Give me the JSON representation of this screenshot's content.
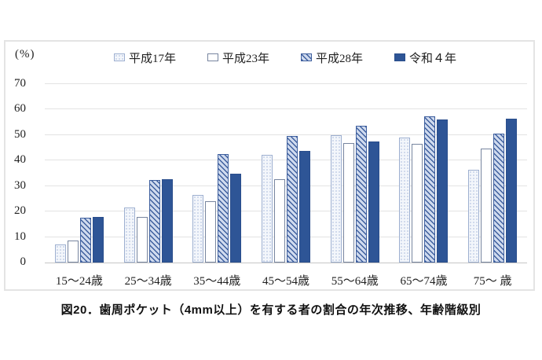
{
  "chart_data": {
    "type": "bar",
    "title": "図20．歯周ポケット（4mm以上）を有する者の割合の年次推移、年齢階級別",
    "unit_label": "(%)",
    "categories": [
      "15～24歳",
      "25～34歳",
      "35～44歳",
      "45～54歳",
      "55～64歳",
      "65～74歳",
      "75～ 歳"
    ],
    "series": [
      {
        "name": "平成17年",
        "style": "dotted",
        "values": [
          7.2,
          21.6,
          26.5,
          42.2,
          49.9,
          48.9,
          36.4
        ]
      },
      {
        "name": "平成23年",
        "style": "plain",
        "values": [
          8.5,
          17.9,
          24.0,
          32.8,
          46.9,
          46.7,
          44.7
        ]
      },
      {
        "name": "平成28年",
        "style": "hatched",
        "values": [
          17.6,
          32.4,
          42.6,
          49.5,
          53.7,
          57.5,
          50.6
        ]
      },
      {
        "name": "令和４年",
        "style": "solid",
        "values": [
          17.8,
          32.7,
          34.7,
          43.9,
          47.6,
          56.1,
          56.4
        ]
      }
    ],
    "ylabel": "",
    "xlabel": "",
    "ylim": [
      0,
      70
    ],
    "yticks": [
      0,
      10,
      20,
      30,
      40,
      50,
      60,
      70
    ],
    "grid": true,
    "legend_position": "top",
    "colors": {
      "solid_bar": "#2e5596",
      "hatch_stripe": "#3e5f9e",
      "hatch_bg": "#cfdaee",
      "dot_fill": "#b9c7e2",
      "plain_border": "#77859f",
      "gridline": "#e3e3e3",
      "axis_line": "#c6c6c6",
      "text": "#1f1f1f"
    }
  }
}
